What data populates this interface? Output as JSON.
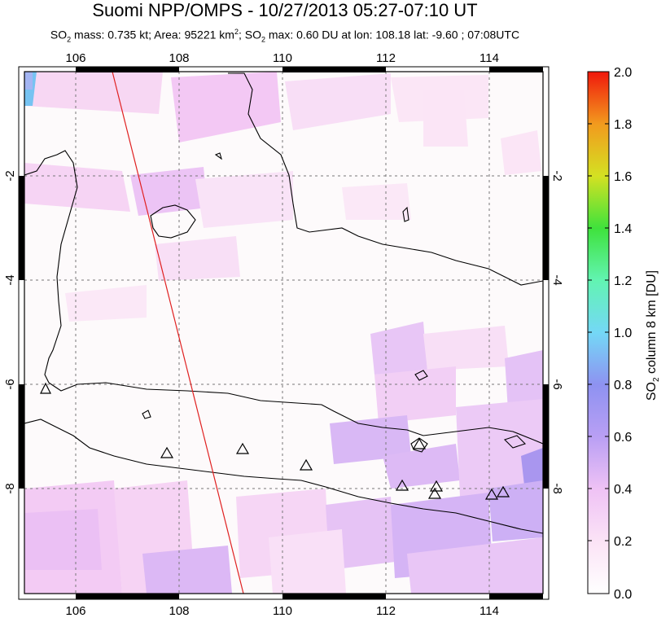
{
  "title": "Suomi NPP/OMPS - 10/27/2013 05:27-07:10 UT",
  "subtitle": {
    "so2_mass_label": "SO",
    "mass_rest": " mass: 0.735 kt; Area: 95221 km",
    "area_sup": "2",
    "max_label": "; SO",
    "max_rest": " max: 0.60 DU at lon: 108.18 lat: -9.60 ; 07:08UTC"
  },
  "map": {
    "lon_ticks": [
      "106",
      "108",
      "110",
      "112",
      "114"
    ],
    "lat_ticks": [
      "-2",
      "-4",
      "-6",
      "-8"
    ],
    "lon_range": [
      105,
      115
    ],
    "lat_range": [
      -10,
      0
    ],
    "volcano_count": 11
  },
  "colorbar": {
    "title_pre": "SO",
    "title_sub": "2",
    "title_post": " column 8 km [DU]",
    "ticks": [
      "2.0",
      "1.8",
      "1.6",
      "1.4",
      "1.2",
      "1.0",
      "0.8",
      "0.6",
      "0.4",
      "0.2",
      "0.0"
    ],
    "colors": [
      "#fdf8f8",
      "#fce0f5",
      "#f5c6f5",
      "#e2b7f5",
      "#b9a2f4",
      "#8d8ef2",
      "#76b8f4",
      "#6eeaf5",
      "#5cf0a8",
      "#43e24a",
      "#a9e12c",
      "#ebe21f",
      "#f2a51f",
      "#f25a1f",
      "#f01f10"
    ]
  }
}
